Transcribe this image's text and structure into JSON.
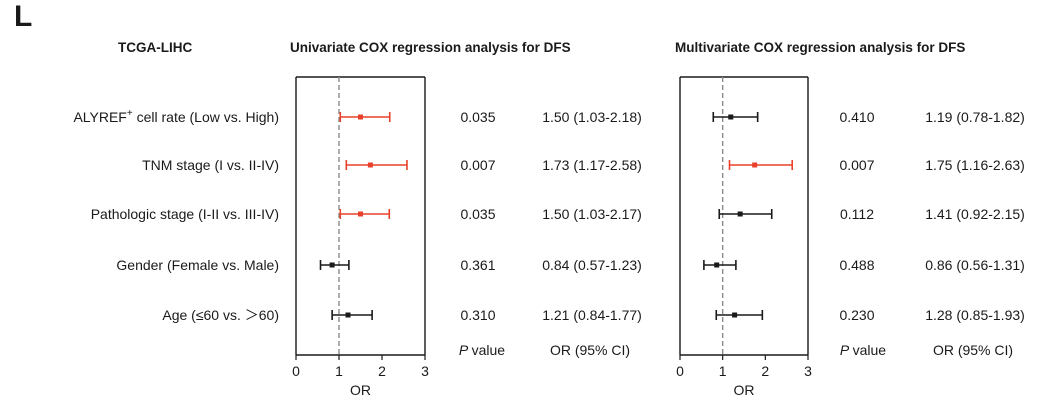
{
  "panel_label": "L",
  "cohort": "TCGA-LIHC",
  "colors": {
    "significant": "#e8402a",
    "nonsignificant": "#1a1a1a",
    "reference_line": "#8c8c8c",
    "axis": "#1a1a1a"
  },
  "chart_data": [
    {
      "type": "forest",
      "title": "Univariate COX regression analysis for DFS",
      "xlabel": "OR",
      "xlim": [
        0,
        3
      ],
      "xticks": [
        0,
        1,
        2,
        3
      ],
      "reference_value": 1,
      "column_headers": {
        "p": "value",
        "p_prefix": "P",
        "or": "OR   (95% CI)"
      },
      "rows": [
        {
          "label": "ALYREF",
          "label_superscript": "+",
          "label_suffix": " cell rate (Low vs. High)",
          "or": 1.5,
          "lower": 1.03,
          "upper": 2.18,
          "p": "0.035",
          "or_text": "1.50 (1.03-2.18)",
          "significant": true
        },
        {
          "label": "TNM stage (I vs. II-IV)",
          "or": 1.73,
          "lower": 1.17,
          "upper": 2.58,
          "p": "0.007",
          "or_text": "1.73 (1.17-2.58)",
          "significant": true
        },
        {
          "label": "Pathologic stage (I-II vs. III-IV)",
          "or": 1.5,
          "lower": 1.03,
          "upper": 2.17,
          "p": "0.035",
          "or_text": "1.50 (1.03-2.17)",
          "significant": true
        },
        {
          "label": "Gender (Female vs. Male)",
          "or": 0.84,
          "lower": 0.57,
          "upper": 1.23,
          "p": "0.361",
          "or_text": "0.84 (0.57-1.23)",
          "significant": false
        },
        {
          "label": "Age (≤60 vs. ＞60)",
          "or": 1.21,
          "lower": 0.84,
          "upper": 1.77,
          "p": "0.310",
          "or_text": "1.21 (0.84-1.77)",
          "significant": false
        }
      ]
    },
    {
      "type": "forest",
      "title": "Multivariate  COX regression analysis for DFS",
      "xlabel": "OR",
      "xlim": [
        0,
        3
      ],
      "xticks": [
        0,
        1,
        2,
        3
      ],
      "reference_value": 1,
      "column_headers": {
        "p": "value",
        "p_prefix": "P",
        "or": "OR   (95% CI)"
      },
      "rows": [
        {
          "or": 1.19,
          "lower": 0.78,
          "upper": 1.82,
          "p": "0.410",
          "or_text": "1.19 (0.78-1.82)",
          "significant": false
        },
        {
          "or": 1.75,
          "lower": 1.16,
          "upper": 2.63,
          "p": "0.007",
          "or_text": "1.75 (1.16-2.63)",
          "significant": true
        },
        {
          "or": 1.41,
          "lower": 0.92,
          "upper": 2.15,
          "p": "0.112",
          "or_text": "1.41 (0.92-2.15)",
          "significant": false
        },
        {
          "or": 0.86,
          "lower": 0.56,
          "upper": 1.31,
          "p": "0.488",
          "or_text": "0.86 (0.56-1.31)",
          "significant": false
        },
        {
          "or": 1.28,
          "lower": 0.85,
          "upper": 1.93,
          "p": "0.230",
          "or_text": "1.28 (0.85-1.93)",
          "significant": false
        }
      ]
    }
  ]
}
